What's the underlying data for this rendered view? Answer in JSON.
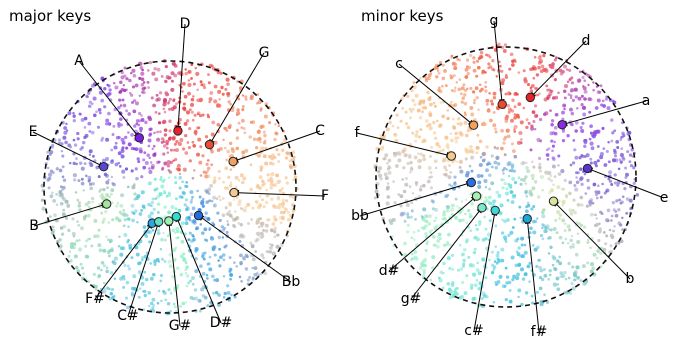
{
  "chart_data": [
    {
      "type": "scatter",
      "title": "major keys",
      "boundary": "dashed circle",
      "keys": [
        {
          "label": "A",
          "color": "#7b1fe0",
          "angle": 122,
          "radius": 0.46
        },
        {
          "label": "D",
          "color": "#e8222a",
          "angle": 82,
          "radius": 0.45
        },
        {
          "label": "G",
          "color": "#ea4f35",
          "angle": 47,
          "radius": 0.46
        },
        {
          "label": "C",
          "color": "#f0a063",
          "angle": 22,
          "radius": 0.54
        },
        {
          "label": "F",
          "color": "#f5c990",
          "angle": -5,
          "radius": 0.51
        },
        {
          "label": "E",
          "color": "#5a46d4",
          "angle": 163,
          "radius": 0.55
        },
        {
          "label": "B",
          "color": "#a6e3a0",
          "angle": -165,
          "radius": 0.52
        },
        {
          "label": "F#",
          "color": "#2aa7e0",
          "angle": -116,
          "radius": 0.32
        },
        {
          "label": "C#",
          "color": "#5de2c4",
          "angle": -108,
          "radius": 0.29
        },
        {
          "label": "G#",
          "color": "#9af4b0",
          "angle": -92,
          "radius": 0.27
        },
        {
          "label": "D#",
          "color": "#2ce0cc",
          "angle": -78,
          "radius": 0.24
        },
        {
          "label": "Bb",
          "color": "#1f6fe0",
          "angle": -45,
          "radius": 0.32
        }
      ]
    },
    {
      "type": "scatter",
      "title": "minor keys",
      "boundary": "dashed circle",
      "keys": [
        {
          "label": "g",
          "color": "#ec4a2e",
          "angle": 93,
          "radius": 0.56
        },
        {
          "label": "d",
          "color": "#e8222a",
          "angle": 73,
          "radius": 0.64
        },
        {
          "label": "c",
          "color": "#f3a05c",
          "angle": 122,
          "radius": 0.47
        },
        {
          "label": "a",
          "color": "#8a2be2",
          "angle": 43,
          "radius": 0.59
        },
        {
          "label": "f",
          "color": "#f5c990",
          "angle": 159,
          "radius": 0.45
        },
        {
          "label": "e",
          "color": "#5a35d0",
          "angle": 6,
          "radius": 0.63
        },
        {
          "label": "bb",
          "color": "#2b6fe0",
          "angle": -171,
          "radius": 0.27
        },
        {
          "label": "b",
          "color": "#d8e69a",
          "angle": -27,
          "radius": 0.41
        },
        {
          "label": "d#",
          "color": "#a6f0b0",
          "angle": -147,
          "radius": 0.27
        },
        {
          "label": "g#",
          "color": "#7de8c8",
          "angle": -128,
          "radius": 0.3
        },
        {
          "label": "c#",
          "color": "#3cd8d8",
          "angle": -108,
          "radius": 0.27
        },
        {
          "label": "f#",
          "color": "#1fa6d8",
          "angle": -63,
          "radius": 0.36
        }
      ]
    }
  ]
}
